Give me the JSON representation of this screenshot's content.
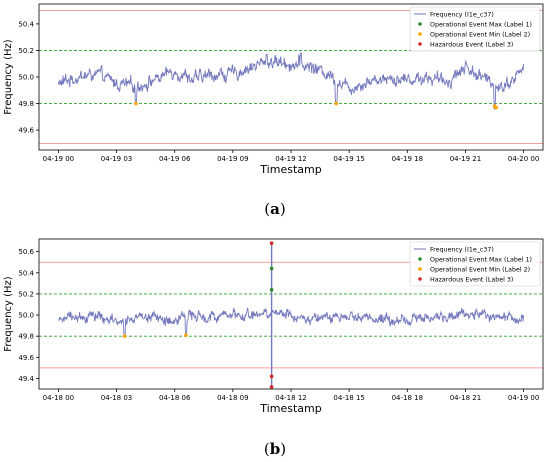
{
  "colors": {
    "frequency_line": "#7479bd",
    "op_max": "#2e8b2e",
    "op_min": "#ffa500",
    "hazardous": "#d62728",
    "green_threshold": "#2ca02c",
    "red_threshold": "#f08080"
  },
  "chart_data": [
    {
      "type": "line",
      "caption_letter": "a",
      "xlabel": "Timestamp",
      "ylabel": "Frequency (Hz)",
      "xlim": [
        "04-18 23:00",
        "04-20 01:00"
      ],
      "ylim": [
        49.45,
        50.55
      ],
      "yticks": [
        49.6,
        49.8,
        50.0,
        50.2,
        50.4
      ],
      "ytick_labels": [
        "49.6",
        "49.8",
        "50.0",
        "50.2",
        "50.4"
      ],
      "xticks": [
        "04-19 00:00",
        "04-19 03:00",
        "04-19 06:00",
        "04-19 09:00",
        "04-19 12:00",
        "04-19 15:00",
        "04-19 18:00",
        "04-19 21:00",
        "04-20 00:00"
      ],
      "xtick_labels": [
        "04-19 00",
        "04-19 03",
        "04-19 06",
        "04-19 09",
        "04-19 12",
        "04-19 15",
        "04-19 18",
        "04-19 21",
        "04-20 00"
      ],
      "grid": false,
      "legend_placement": "top-right",
      "series_legend": [
        "Frequency (I1e_c37)",
        "Operational Event Max (Label 1)",
        "Operational Event Min (Label 2)",
        "Hazardous Event (Label 3)"
      ],
      "thresholds": {
        "green": [
          49.8,
          50.2
        ],
        "red": [
          49.5,
          50.5
        ]
      },
      "frequency_series": {
        "name": "Frequency (I1e_c37)",
        "x": [
          "04-19 00:00",
          "04-19 01:00",
          "04-19 02:00",
          "04-19 03:00",
          "04-19 04:00",
          "04-19 05:00",
          "04-19 06:00",
          "04-19 07:00",
          "04-19 08:00",
          "04-19 09:00",
          "04-19 10:00",
          "04-19 11:00",
          "04-19 12:00",
          "04-19 13:00",
          "04-19 14:00",
          "04-19 15:00",
          "04-19 16:00",
          "04-19 17:00",
          "04-19 18:00",
          "04-19 19:00",
          "04-19 20:00",
          "04-19 21:00",
          "04-19 22:00",
          "04-19 23:00",
          "04-20 00:00"
        ],
        "values": [
          49.95,
          50.0,
          50.02,
          49.95,
          49.93,
          49.98,
          50.05,
          49.98,
          50.02,
          50.02,
          50.08,
          50.12,
          50.1,
          50.08,
          50.02,
          49.92,
          49.97,
          50.0,
          49.98,
          50.0,
          49.96,
          50.08,
          49.98,
          49.93,
          50.06
        ],
        "min_spikes": [
          {
            "x": "04-19 04:00",
            "y": 49.8
          },
          {
            "x": "04-19 14:20",
            "y": 49.8
          },
          {
            "x": "04-19 22:30",
            "y": 49.76
          }
        ],
        "max_spikes": [
          {
            "x": "04-19 12:30",
            "y": 50.18
          },
          {
            "x": "04-19 10:45",
            "y": 50.17
          }
        ]
      },
      "events": {
        "operational_max": [],
        "operational_min": [
          {
            "x": "04-19 04:00",
            "y": 49.8
          },
          {
            "x": "04-19 14:20",
            "y": 49.8
          },
          {
            "x": "04-19 22:30",
            "y": 49.78
          },
          {
            "x": "04-19 22:35",
            "y": 49.77
          }
        ],
        "hazardous": []
      }
    },
    {
      "type": "line",
      "caption_letter": "b",
      "xlabel": "Timestamp",
      "ylabel": "Frequency (Hz)",
      "xlim": [
        "04-17 23:00",
        "04-19 01:00"
      ],
      "ylim": [
        49.3,
        50.72
      ],
      "yticks": [
        49.4,
        49.6,
        49.8,
        50.0,
        50.2,
        50.4,
        50.6
      ],
      "ytick_labels": [
        "49.4",
        "49.6",
        "49.8",
        "50.0",
        "50.2",
        "50.4",
        "50.6"
      ],
      "xticks": [
        "04-18 00:00",
        "04-18 03:00",
        "04-18 06:00",
        "04-18 09:00",
        "04-18 12:00",
        "04-18 15:00",
        "04-18 18:00",
        "04-18 21:00",
        "04-19 00:00"
      ],
      "xtick_labels": [
        "04-18 00",
        "04-18 03",
        "04-18 06",
        "04-18 09",
        "04-18 12",
        "04-18 15",
        "04-18 18",
        "04-18 21",
        "04-19 00"
      ],
      "grid": false,
      "legend_placement": "top-right",
      "series_legend": [
        "Frequency (I1e_c37)",
        "Operational Event Max (Label 1)",
        "Operational Event Min (Label 2)",
        "Hazardous Event (Label 3)"
      ],
      "thresholds": {
        "green": [
          49.8,
          50.2
        ],
        "red": [
          49.5,
          50.5
        ]
      },
      "frequency_series": {
        "name": "Frequency (I1e_c37)",
        "x": [
          "04-18 00:00",
          "04-18 01:00",
          "04-18 02:00",
          "04-18 03:00",
          "04-18 04:00",
          "04-18 05:00",
          "04-18 06:00",
          "04-18 07:00",
          "04-18 08:00",
          "04-18 09:00",
          "04-18 10:00",
          "04-18 11:00",
          "04-18 12:00",
          "04-18 13:00",
          "04-18 14:00",
          "04-18 15:00",
          "04-18 16:00",
          "04-18 17:00",
          "04-18 18:00",
          "04-18 19:00",
          "04-18 20:00",
          "04-18 21:00",
          "04-18 22:00",
          "04-18 23:00",
          "04-19 00:00"
        ],
        "values": [
          49.96,
          50.0,
          50.0,
          49.93,
          49.95,
          49.98,
          49.96,
          50.0,
          50.0,
          50.0,
          49.98,
          50.05,
          50.0,
          49.97,
          49.98,
          50.0,
          49.97,
          49.95,
          49.96,
          49.98,
          50.0,
          50.02,
          50.0,
          49.98,
          49.95
        ],
        "min_spikes": [
          {
            "x": "04-18 03:25",
            "y": 49.8
          },
          {
            "x": "04-18 06:35",
            "y": 49.81
          }
        ],
        "max_spikes": [],
        "vertical_event": {
          "x": "04-18 11:00",
          "low": 49.32,
          "high": 50.68
        }
      },
      "events": {
        "operational_max": [
          {
            "x": "04-18 11:00",
            "y": 50.44
          },
          {
            "x": "04-18 11:00",
            "y": 50.24
          }
        ],
        "operational_min": [
          {
            "x": "04-18 03:25",
            "y": 49.8
          },
          {
            "x": "04-18 06:35",
            "y": 49.81
          }
        ],
        "hazardous": [
          {
            "x": "04-18 11:00",
            "y": 50.68
          },
          {
            "x": "04-18 11:00",
            "y": 49.42
          },
          {
            "x": "04-18 11:00",
            "y": 49.32
          }
        ]
      }
    }
  ],
  "captions": {
    "a": {
      "open": "(",
      "letter": "a",
      "close": ")"
    },
    "b": {
      "open": "(",
      "letter": "b",
      "close": ")"
    }
  }
}
